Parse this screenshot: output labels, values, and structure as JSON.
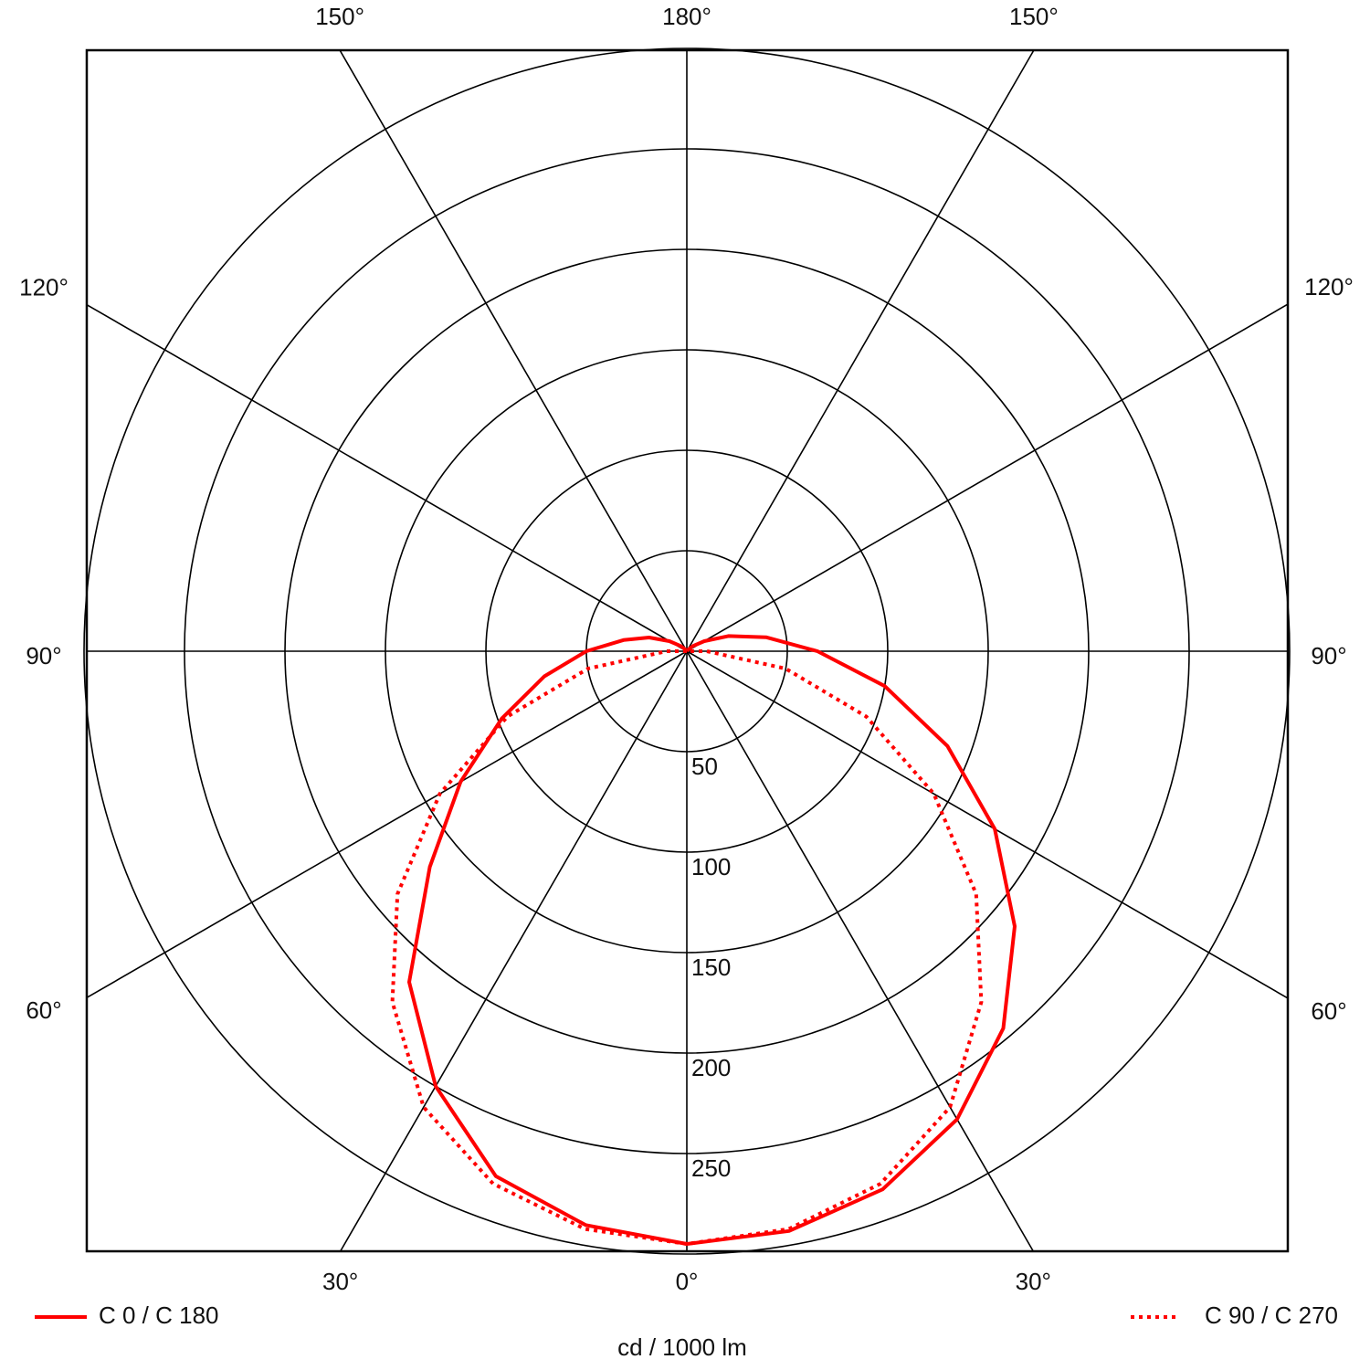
{
  "chart_data": {
    "type": "polar",
    "unit_label": "cd / 1000 lm",
    "x": [
      -180,
      -170,
      -160,
      -150,
      -140,
      -130,
      -120,
      -110,
      -100,
      -90,
      -80,
      -70,
      -60,
      -50,
      -40,
      -30,
      -20,
      -10,
      0,
      10,
      20,
      30,
      40,
      50,
      60,
      70,
      80,
      90,
      100,
      110,
      120,
      130,
      140,
      150,
      160,
      170,
      180
    ],
    "series": [
      {
        "name": "C 0 / C 180",
        "color": "#ff0000",
        "style": "solid",
        "values": [
          0,
          0,
          0,
          0,
          1,
          4,
          10,
          20,
          32,
          50,
          72,
          98,
          130,
          167,
          215,
          250,
          278,
          290,
          295,
          293,
          285,
          269,
          245,
          213,
          177,
          138,
          100,
          65,
          40,
          22,
          10,
          4,
          1,
          0,
          0,
          0,
          0
        ]
      },
      {
        "name": "C 90 / C 270",
        "color": "#ff0000",
        "style": "dotted",
        "values": [
          0,
          0,
          0,
          0,
          0,
          0,
          0,
          0,
          0,
          10,
          50,
          95,
          142,
          188,
          228,
          262,
          282,
          292,
          295,
          292,
          282,
          262,
          228,
          188,
          142,
          95,
          50,
          10,
          0,
          0,
          0,
          0,
          0,
          0,
          0,
          0,
          0
        ]
      }
    ],
    "rlim": [
      0,
      300
    ],
    "rticks": [
      50,
      100,
      150,
      200,
      250
    ],
    "angle_ticks": [
      {
        "value": -150,
        "label": "150°"
      },
      {
        "value": 180,
        "label": "180°"
      },
      {
        "value": 150,
        "label": "150°"
      },
      {
        "value": -120,
        "label": "120°"
      },
      {
        "value": 120,
        "label": "120°"
      },
      {
        "value": -90,
        "label": "90°"
      },
      {
        "value": 90,
        "label": "90°"
      },
      {
        "value": -60,
        "label": "60°"
      },
      {
        "value": 60,
        "label": "60°"
      },
      {
        "value": -30,
        "label": "30°"
      },
      {
        "value": 0,
        "label": "0°"
      },
      {
        "value": 30,
        "label": "30°"
      }
    ]
  }
}
